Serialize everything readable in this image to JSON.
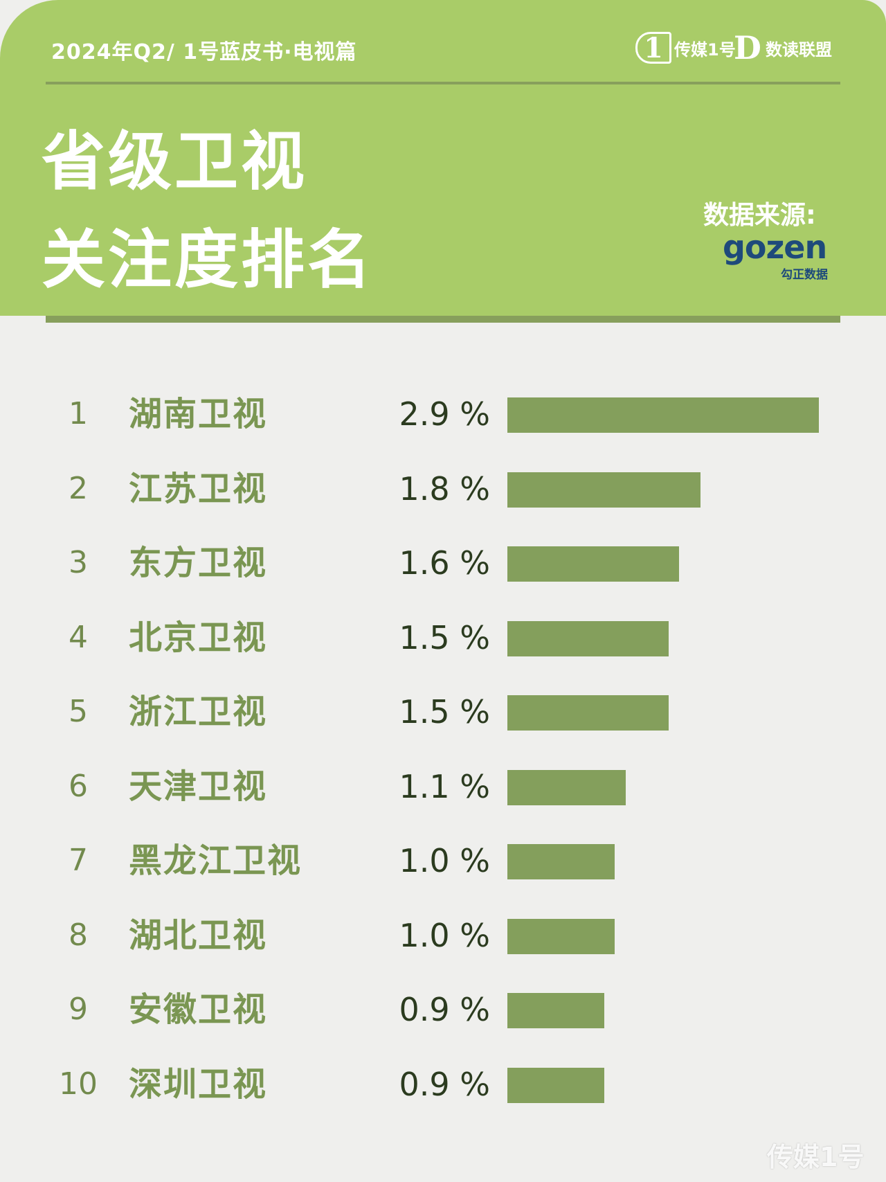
{
  "header": {
    "report_label": "2024年Q2/ 1号蓝皮书·电视篇",
    "brand_primary": {
      "mark": "1",
      "text": "传媒1号"
    },
    "brand_secondary": {
      "mark": "D",
      "text": "数读联盟"
    },
    "title_line1": "省级卫视",
    "title_line2": "关注度排名",
    "source_label": "数据来源:",
    "source_logo": {
      "word": "gozen",
      "sub": "勾正数据"
    }
  },
  "watermark": "传媒1号",
  "colors": {
    "header_bg": "#a9cc68",
    "bar": "#849f5c",
    "page_bg": "#efefed",
    "name_text": "#7a9652",
    "logo": "#1e4a7b"
  },
  "chart_data": {
    "type": "bar",
    "orientation": "horizontal",
    "title": "省级卫视关注度排名",
    "unit": "%",
    "ranks": [
      "1",
      "2",
      "3",
      "4",
      "5",
      "6",
      "7",
      "8",
      "9",
      "10"
    ],
    "categories": [
      "湖南卫视",
      "江苏卫视",
      "东方卫视",
      "北京卫视",
      "浙江卫视",
      "天津卫视",
      "黑龙江卫视",
      "湖北卫视",
      "安徽卫视",
      "深圳卫视"
    ],
    "values": [
      2.9,
      1.8,
      1.6,
      1.5,
      1.5,
      1.1,
      1.0,
      1.0,
      0.9,
      0.9
    ],
    "value_labels": [
      "2.9 %",
      "1.8 %",
      "1.6 %",
      "1.5 %",
      "1.5 %",
      "1.1 %",
      "1.0 %",
      "1.0 %",
      "0.9 %",
      "0.9 %"
    ],
    "grid": false,
    "legend": "none"
  }
}
